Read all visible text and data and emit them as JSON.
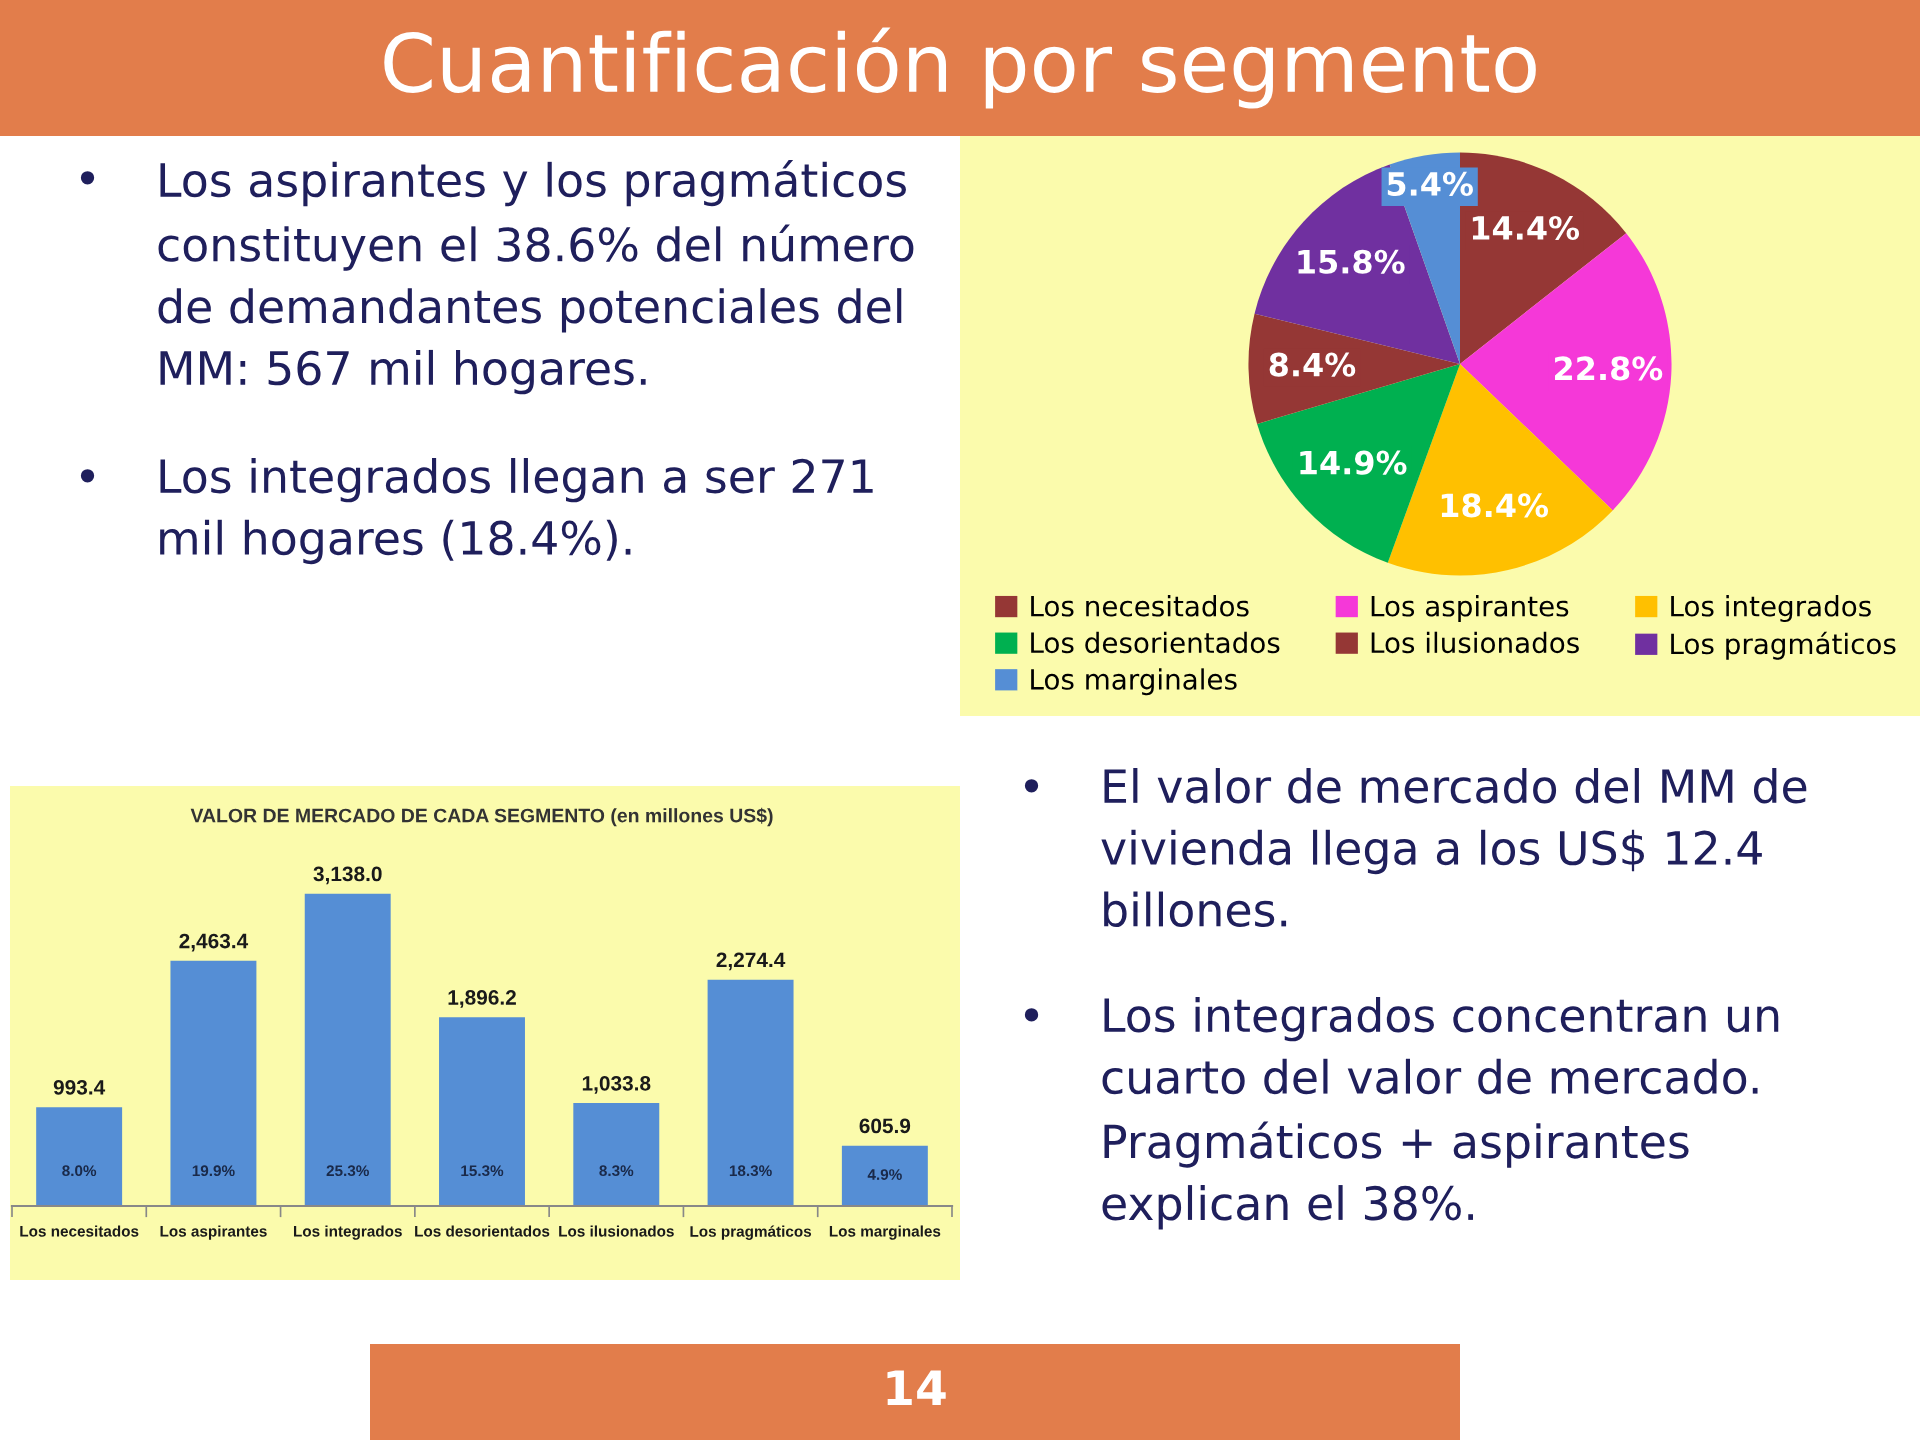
{
  "chart_data": [
    {
      "type": "other",
      "title": "Cuantificación por segmento",
      "annotations": [
        "• Los aspirantes y los pragmáticos constituyen el 38.6% del número de demandantes potenciales del MM: 567 mil hogares.",
        "• Los integrados llegan a ser 271 mil hogares (18.4%)."
      ]
    },
    {
      "type": "pie",
      "categories": [
        "Los necesitados",
        "Los aspirantes",
        "Los integrados",
        "Los desorientados",
        "Los ilusionados",
        "Los pragmáticos",
        "Los marginales"
      ],
      "values": [
        14.4,
        22.8,
        18.4,
        14.9,
        8.4,
        15.8,
        5.4
      ],
      "colors": [
        "#953735",
        "#f538d8",
        "#ffc000",
        "#00b050",
        "#953735",
        "#7030a0",
        "#558ed5"
      ],
      "value_labels": [
        "14.4%",
        "22.8%",
        "18.4%",
        "14.9%",
        "8.4%",
        "15.8%",
        "5.4%"
      ],
      "legend": "bottom"
    },
    {
      "type": "bar",
      "title": "VALOR DE MERCADO DE CADA SEGMENTO (en millones US$)",
      "categories": [
        "Los necesitados",
        "Los aspirantes",
        "Los integrados",
        "Los desorientados",
        "Los ilusionados",
        "Los pragmáticos",
        "Los marginales"
      ],
      "values": [
        993.4,
        2463.4,
        3138.0,
        1896.2,
        1033.8,
        2274.4,
        605.9
      ],
      "color": "#558ed5",
      "value_labels": [
        "993.4",
        "2,463.4",
        "3,138.0",
        "1,896.2",
        "1,033.8",
        "2,274.4",
        "605.9"
      ],
      "annotations": [
        "8.0%",
        "19.9%",
        "25.3%",
        "15.3%",
        "8.3%",
        "18.3%",
        "4.9%"
      ]
    },
    {
      "type": "other",
      "annotations": [
        "• El valor de mercado del MM de vivienda llega a los US$ 12.4 billones.",
        "• Los integrados concentran un cuarto del valor de mercado. Pragmáticos + aspirantes explican el 38%."
      ]
    },
    {
      "type": "other",
      "title": "14"
    }
  ]
}
